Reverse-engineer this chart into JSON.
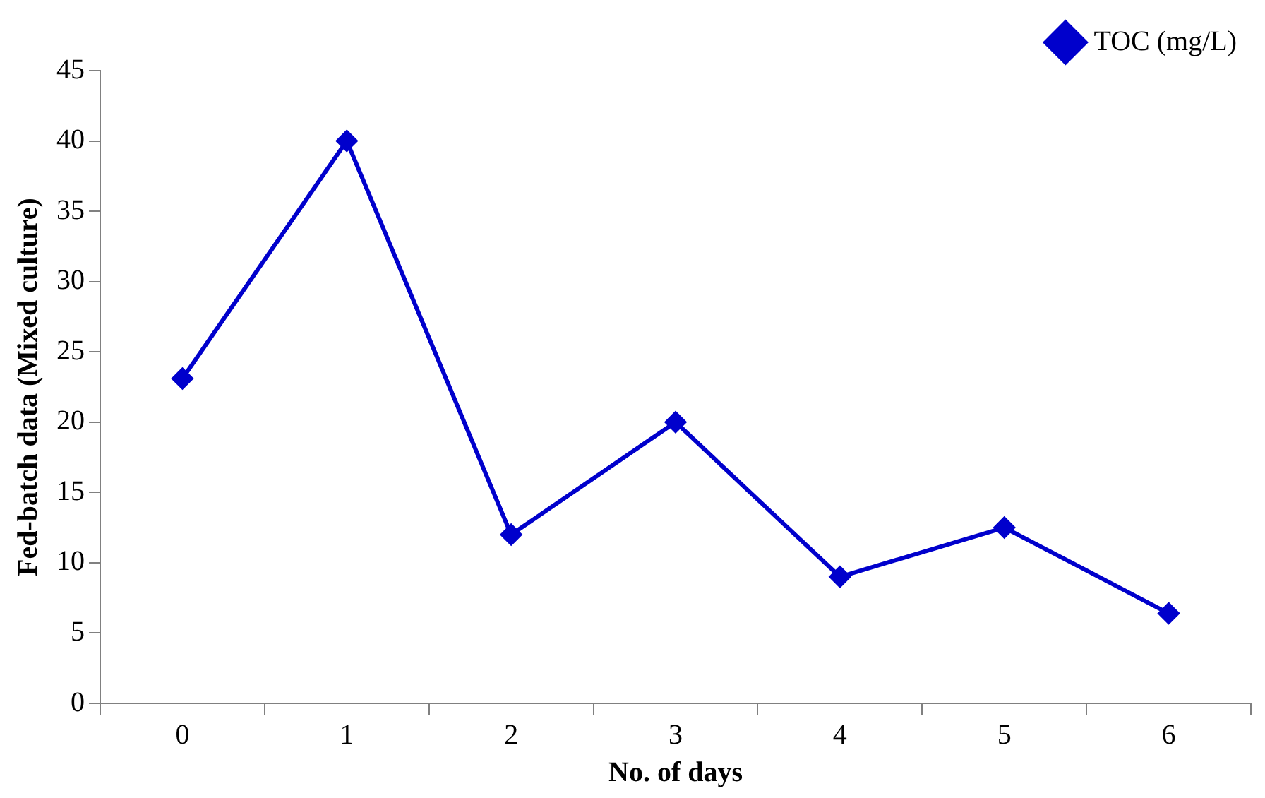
{
  "chart_data": {
    "type": "line",
    "xlabel": "No. of days",
    "ylabel": "Fed-batch data (Mixed culture)",
    "categories": [
      "0",
      "1",
      "2",
      "3",
      "4",
      "5",
      "6"
    ],
    "series": [
      {
        "name": "TOC (mg/L)",
        "color": "#0000cc",
        "values": [
          23.1,
          40,
          12,
          20,
          9,
          12.5,
          6.4
        ]
      }
    ],
    "ylim": [
      0,
      45
    ],
    "yticks": [
      0,
      5,
      10,
      15,
      20,
      25,
      30,
      35,
      40,
      45
    ],
    "grid": false,
    "legend": "top right",
    "marker": "diamond",
    "line_style": "solid"
  }
}
